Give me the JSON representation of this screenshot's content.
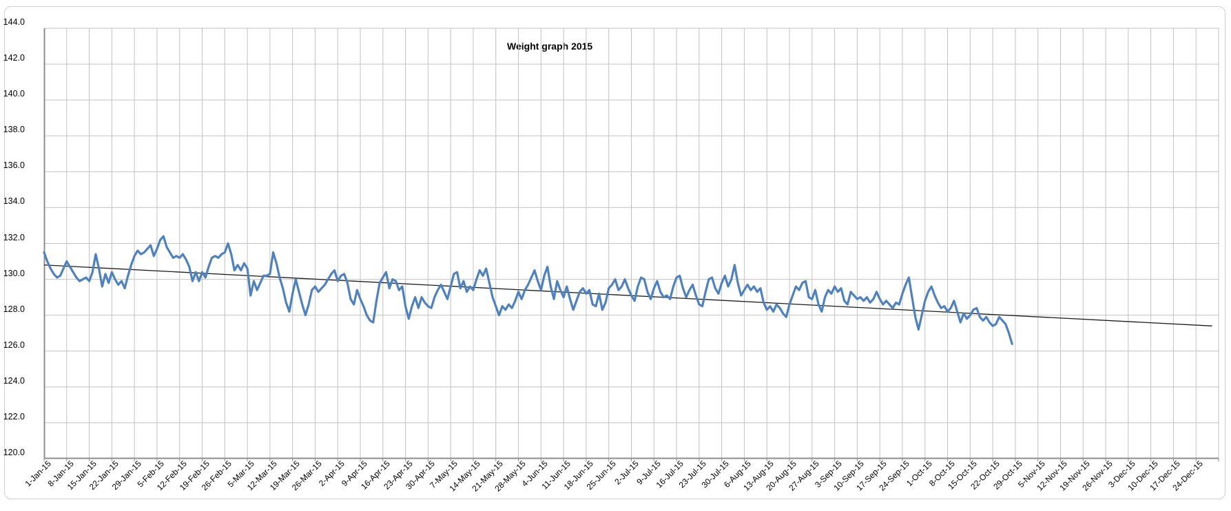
{
  "title": "Weight graph 2015",
  "colors": {
    "series_line": "#4F81BD",
    "trend_line": "#1a1a1a",
    "gridline": "#c2c2c2",
    "axis_line": "#8c8c8c",
    "label_text": "#000000",
    "frame_border": "#d0d0d0",
    "background": "#ffffff"
  },
  "chart_data": {
    "type": "line",
    "title": "Weight graph 2015",
    "xlabel": "",
    "ylabel": "",
    "ylim": [
      120.0,
      144.0
    ],
    "y_tick_step": 2.0,
    "y_tick_labels": [
      "120.0",
      "122.0",
      "124.0",
      "126.0",
      "128.0",
      "130.0",
      "132.0",
      "134.0",
      "136.0",
      "138.0",
      "140.0",
      "142.0",
      "144.0"
    ],
    "x_tick_labels": [
      "1-Jan-15",
      "8-Jan-15",
      "15-Jan-15",
      "22-Jan-15",
      "29-Jan-15",
      "5-Feb-15",
      "12-Feb-15",
      "19-Feb-15",
      "26-Feb-15",
      "5-Mar-15",
      "12-Mar-15",
      "19-Mar-15",
      "26-Mar-15",
      "2-Apr-15",
      "9-Apr-15",
      "16-Apr-15",
      "23-Apr-15",
      "30-Apr-15",
      "7-May-15",
      "14-May-15",
      "21-May-15",
      "28-May-15",
      "4-Jun-15",
      "11-Jun-15",
      "18-Jun-15",
      "25-Jun-15",
      "2-Jul-15",
      "9-Jul-15",
      "16-Jul-15",
      "23-Jul-15",
      "30-Jul-15",
      "6-Aug-15",
      "13-Aug-15",
      "20-Aug-15",
      "27-Aug-15",
      "3-Sep-15",
      "10-Sep-15",
      "17-Sep-15",
      "24-Sep-15",
      "1-Oct-15",
      "8-Oct-15",
      "15-Oct-15",
      "22-Oct-15",
      "29-Oct-15",
      "5-Nov-15",
      "12-Nov-15",
      "19-Nov-15",
      "26-Nov-15",
      "3-Dec-15",
      "10-Dec-15",
      "17-Dec-15",
      "24-Dec-15"
    ],
    "x_days_per_tick": 7,
    "x_total_days": 364,
    "grid": true,
    "legend": "none",
    "series": [
      {
        "name": "daily-weight",
        "start_label": "1-Jan-15",
        "frequency": "daily",
        "values": [
          131.5,
          131.0,
          130.6,
          130.3,
          130.1,
          130.2,
          130.6,
          131.0,
          130.7,
          130.4,
          130.1,
          129.9,
          130.0,
          130.1,
          129.9,
          130.4,
          131.4,
          130.6,
          129.6,
          130.3,
          129.8,
          130.4,
          130.0,
          129.7,
          129.9,
          129.5,
          130.2,
          130.8,
          131.3,
          131.6,
          131.4,
          131.5,
          131.7,
          131.9,
          131.3,
          131.7,
          132.2,
          132.4,
          131.8,
          131.5,
          131.2,
          131.3,
          131.2,
          131.4,
          131.1,
          130.7,
          129.9,
          130.4,
          129.9,
          130.4,
          130.1,
          130.7,
          131.2,
          131.3,
          131.2,
          131.4,
          131.5,
          132.0,
          131.4,
          130.5,
          130.8,
          130.5,
          130.9,
          130.6,
          129.1,
          129.9,
          129.4,
          129.8,
          130.2,
          130.2,
          130.3,
          131.5,
          130.9,
          130.1,
          129.5,
          128.7,
          128.2,
          129.2,
          130.0,
          129.3,
          128.6,
          128.0,
          128.6,
          129.4,
          129.6,
          129.3,
          129.5,
          129.7,
          130.0,
          130.3,
          130.5,
          129.9,
          130.2,
          130.3,
          129.8,
          128.9,
          128.6,
          129.4,
          128.9,
          128.5,
          128.0,
          127.7,
          127.6,
          128.8,
          129.8,
          130.1,
          130.4,
          129.5,
          130.0,
          129.9,
          129.4,
          129.6,
          128.5,
          127.8,
          128.5,
          129.0,
          128.4,
          129.0,
          128.7,
          128.5,
          128.4,
          129.0,
          129.4,
          129.7,
          129.3,
          128.9,
          129.6,
          130.3,
          130.4,
          129.5,
          129.9,
          129.3,
          129.6,
          129.4,
          130.0,
          130.5,
          130.2,
          130.6,
          129.8,
          129.0,
          128.5,
          128.0,
          128.5,
          128.3,
          128.6,
          128.4,
          128.8,
          129.3,
          128.9,
          129.4,
          129.7,
          130.1,
          130.5,
          129.9,
          129.4,
          130.2,
          130.7,
          129.6,
          128.9,
          129.9,
          129.4,
          129.0,
          129.6,
          128.9,
          128.3,
          128.8,
          129.3,
          129.5,
          129.2,
          129.4,
          128.6,
          128.5,
          129.2,
          128.3,
          128.7,
          129.5,
          129.7,
          130.0,
          129.4,
          129.6,
          130.0,
          129.5,
          129.1,
          128.8,
          129.6,
          130.1,
          130.0,
          129.3,
          128.9,
          129.5,
          129.9,
          129.3,
          129.0,
          129.1,
          128.9,
          129.6,
          130.1,
          130.2,
          129.5,
          129.0,
          129.4,
          129.7,
          129.1,
          128.6,
          128.5,
          129.3,
          130.0,
          130.1,
          129.5,
          129.2,
          129.8,
          130.2,
          129.6,
          130.0,
          130.8,
          129.8,
          129.1,
          129.4,
          129.7,
          129.4,
          129.6,
          129.3,
          129.5,
          128.7,
          128.3,
          128.5,
          128.2,
          128.6,
          128.4,
          128.1,
          127.9,
          128.6,
          129.1,
          129.6,
          129.4,
          129.8,
          129.9,
          129.0,
          128.9,
          129.4,
          128.6,
          128.2,
          129.0,
          129.4,
          129.2,
          129.6,
          129.3,
          129.5,
          128.8,
          128.6,
          129.3,
          129.1,
          128.9,
          129.0,
          128.8,
          129.0,
          128.7,
          128.9,
          129.3,
          128.9,
          128.6,
          128.8,
          128.6,
          128.4,
          128.7,
          128.6,
          129.2,
          129.7,
          130.1,
          129.0,
          127.9,
          127.2,
          128.0,
          128.8,
          129.3,
          129.6,
          129.1,
          128.7,
          128.4,
          128.5,
          128.2,
          128.4,
          128.8,
          128.2,
          127.6,
          128.1,
          127.8,
          128.0,
          128.3,
          128.4,
          127.9,
          127.7,
          127.9,
          127.6,
          127.4,
          127.5,
          127.9,
          127.7,
          127.5,
          127.0,
          126.4
        ]
      },
      {
        "name": "linear-trendline",
        "kind": "trend",
        "start_day": 0,
        "end_day": 362,
        "start_value": 130.8,
        "end_value": 127.4
      }
    ]
  }
}
